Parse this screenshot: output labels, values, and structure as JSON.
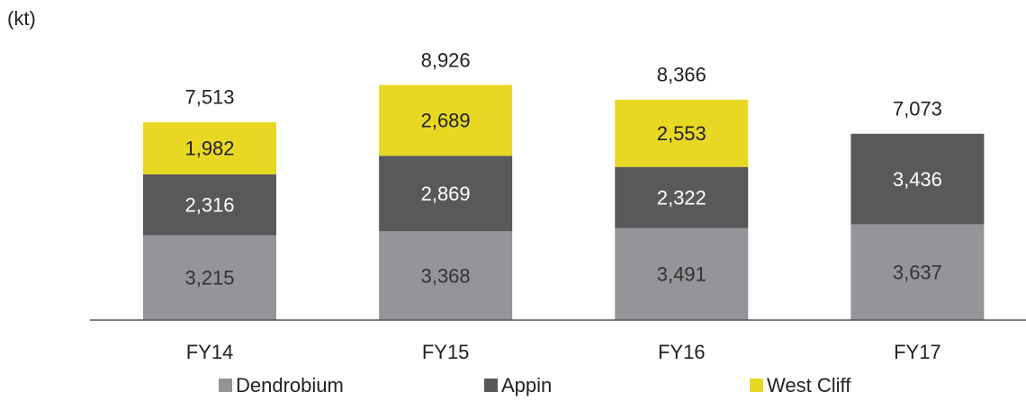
{
  "chart_data": {
    "type": "stacked_bar",
    "y_label": "(kt)",
    "categories": [
      "FY14",
      "FY15",
      "FY16",
      "FY17"
    ],
    "series": [
      {
        "name": "Dendrobium",
        "color": "#939598",
        "label_color": "#333333",
        "values": [
          3215,
          3368,
          3491,
          3637
        ],
        "value_labels": [
          "3,215",
          "3,368",
          "3,491",
          "3,637"
        ]
      },
      {
        "name": "Appin",
        "color": "#58595b",
        "label_color": "#ffffff",
        "values": [
          2316,
          2869,
          2322,
          3436
        ],
        "value_labels": [
          "2,316",
          "2,869",
          "2,322",
          "3,436"
        ]
      },
      {
        "name": "West Cliff",
        "color": "#e9d823",
        "label_color": "#222222",
        "values": [
          1982,
          2689,
          2553,
          null
        ],
        "value_labels": [
          "1,982",
          "2,689",
          "2,553",
          null
        ]
      }
    ],
    "totals": [
      7513,
      8926,
      8366,
      7073
    ],
    "total_labels": [
      "7,513",
      "8,926",
      "8,366",
      "7,073"
    ],
    "ylim": [
      0,
      10000
    ],
    "legend": "bottom"
  }
}
